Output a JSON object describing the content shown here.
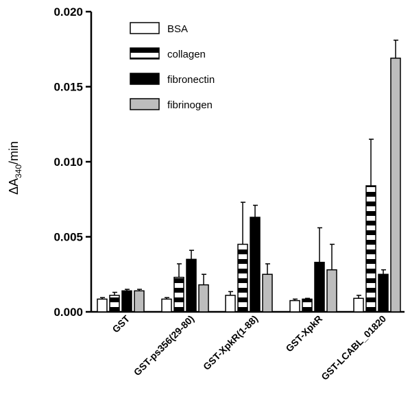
{
  "chart_data": {
    "type": "bar",
    "title": "",
    "xlabel": "",
    "ylabel": {
      "prefix": "ΔA",
      "subscript": "340",
      "suffix": "/min"
    },
    "ylim": [
      0,
      0.02
    ],
    "yticks": [
      "0.000",
      "0.005",
      "0.010",
      "0.015",
      "0.020"
    ],
    "ytick_values": [
      0,
      0.005,
      0.01,
      0.015,
      0.02
    ],
    "categories": [
      "GST",
      "GST-ps356(29-80)",
      "GST-XpkR(1-88)",
      "GST-XpkR",
      "GST-LCABL_01820"
    ],
    "legend_position": "top-left",
    "grid": false,
    "series": [
      {
        "name": "BSA",
        "pattern": "white",
        "values": [
          0.00085,
          0.00085,
          0.0011,
          0.00075,
          0.0009
        ],
        "errors": [
          0.0001,
          0.0001,
          0.00025,
          0.0001,
          0.0002
        ]
      },
      {
        "name": "collagen",
        "pattern": "striped",
        "values": [
          0.0011,
          0.0023,
          0.0045,
          0.00085,
          0.0084
        ],
        "errors": [
          0.0002,
          0.0009,
          0.0028,
          5e-05,
          0.0031
        ]
      },
      {
        "name": "fibronectin",
        "pattern": "black",
        "values": [
          0.0014,
          0.0035,
          0.0063,
          0.0033,
          0.0025
        ],
        "errors": [
          0.0001,
          0.0006,
          0.0008,
          0.0023,
          0.0003
        ]
      },
      {
        "name": "fibrinogen",
        "pattern": "gray",
        "values": [
          0.0014,
          0.0018,
          0.0025,
          0.0028,
          0.0169
        ],
        "errors": [
          0.0001,
          0.0007,
          0.0007,
          0.0017,
          0.0012
        ]
      }
    ],
    "colors": {
      "white": "#ffffff",
      "black": "#000000",
      "gray": "#bdbdbd",
      "stroke": "#000000"
    }
  }
}
